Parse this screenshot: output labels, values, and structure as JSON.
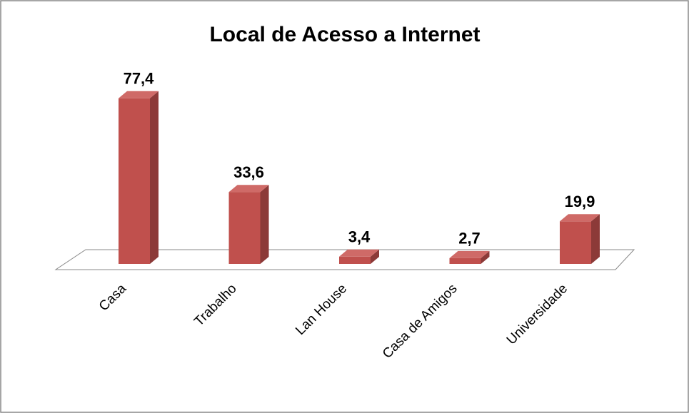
{
  "chart_data": {
    "type": "bar3d",
    "title": "Local de Acesso a Internet",
    "categories": [
      "Casa",
      "Trabalho",
      "Lan House",
      "Casa de Amigos",
      "Universidade"
    ],
    "values": [
      77.4,
      33.6,
      3.4,
      2.7,
      19.9
    ],
    "value_labels": [
      "77,4",
      "33,6",
      "3,4",
      "2,7",
      "19,9"
    ],
    "color": "#c0504d"
  }
}
